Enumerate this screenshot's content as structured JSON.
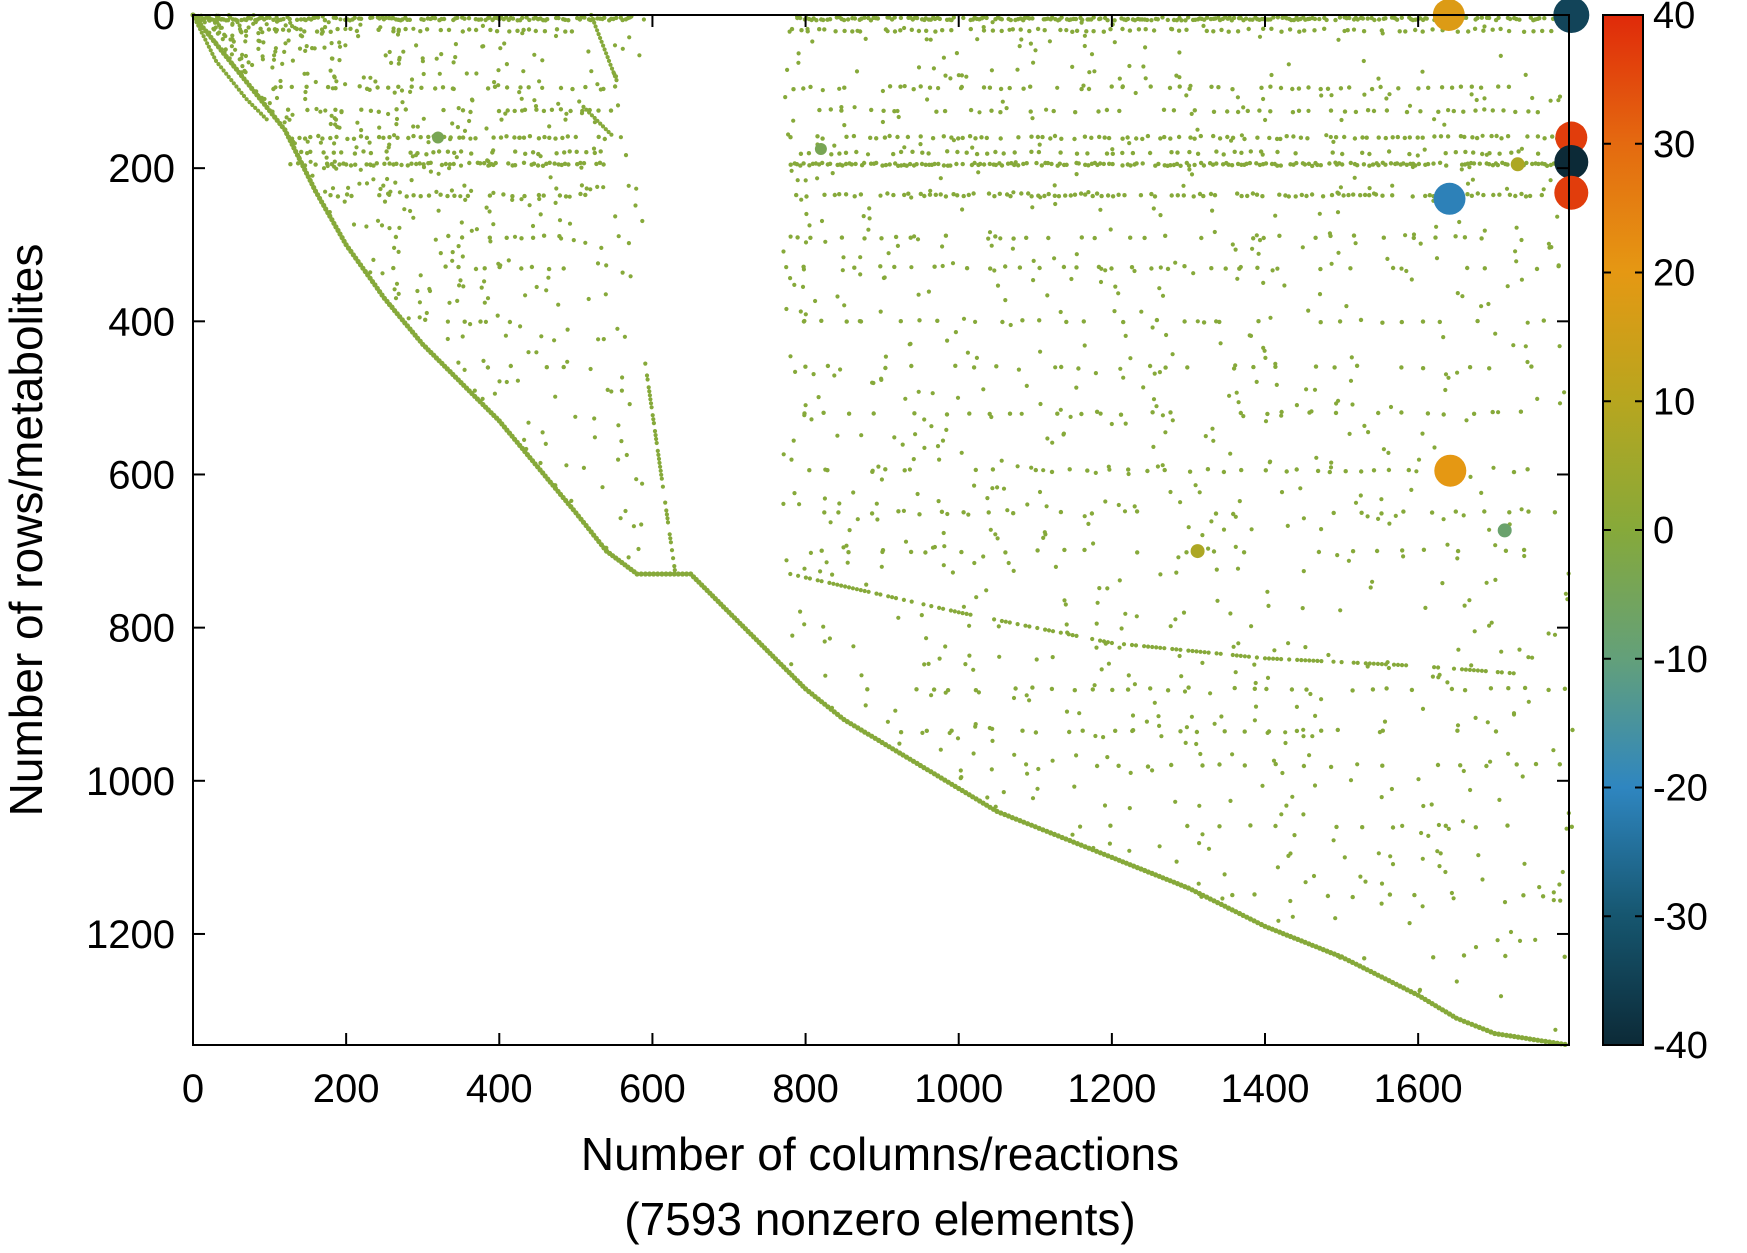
{
  "chart_data": {
    "type": "scatter",
    "title": "",
    "xlabel": "Number of columns/reactions",
    "xlabel_note": "(7593 nonzero elements)",
    "ylabel": "Number of rows/metabolites",
    "xlim": [
      0,
      1797
    ],
    "ylim": [
      1345,
      0
    ],
    "x_ticks": [
      0,
      200,
      400,
      600,
      800,
      1000,
      1200,
      1400,
      1600
    ],
    "y_ticks": [
      0,
      200,
      400,
      600,
      800,
      1000,
      1200
    ],
    "grid": false,
    "legend": "none",
    "colorbar": {
      "min": -40,
      "max": 40,
      "ticks": [
        40,
        30,
        20,
        10,
        0,
        -10,
        -20,
        -30,
        -40
      ],
      "stops": [
        {
          "v": -40,
          "color": "#0c2a37"
        },
        {
          "v": -30,
          "color": "#16566f"
        },
        {
          "v": -20,
          "color": "#2f86c0"
        },
        {
          "v": -10,
          "color": "#63a07a"
        },
        {
          "v": 0,
          "color": "#86a93a"
        },
        {
          "v": 10,
          "color": "#b7a61f"
        },
        {
          "v": 20,
          "color": "#e59813"
        },
        {
          "v": 30,
          "color": "#e46a10"
        },
        {
          "v": 40,
          "color": "#e02a0a"
        }
      ]
    },
    "diagonal_segments": [
      [
        [
          0,
          0
        ],
        [
          40,
          50
        ],
        [
          80,
          100
        ],
        [
          120,
          150
        ],
        [
          160,
          230
        ],
        [
          200,
          300
        ],
        [
          250,
          370
        ],
        [
          300,
          430
        ],
        [
          350,
          480
        ],
        [
          400,
          530
        ],
        [
          450,
          590
        ],
        [
          500,
          650
        ],
        [
          540,
          700
        ],
        [
          580,
          730
        ],
        [
          650,
          730
        ],
        [
          700,
          780
        ],
        [
          750,
          830
        ],
        [
          800,
          880
        ],
        [
          850,
          920
        ],
        [
          900,
          950
        ],
        [
          950,
          980
        ],
        [
          1000,
          1010
        ],
        [
          1050,
          1040
        ],
        [
          1100,
          1060
        ],
        [
          1150,
          1080
        ],
        [
          1200,
          1100
        ],
        [
          1300,
          1140
        ],
        [
          1400,
          1190
        ],
        [
          1500,
          1230
        ],
        [
          1600,
          1280
        ],
        [
          1650,
          1310
        ],
        [
          1700,
          1330
        ],
        [
          1797,
          1345
        ]
      ],
      [
        [
          0,
          0
        ],
        [
          30,
          60
        ],
        [
          70,
          110
        ],
        [
          100,
          140
        ]
      ],
      [
        [
          520,
          0
        ],
        [
          555,
          90
        ]
      ],
      [
        [
          510,
          120
        ],
        [
          550,
          160
        ]
      ],
      [
        [
          590,
          450
        ],
        [
          630,
          730
        ]
      ],
      [
        [
          780,
          730
        ],
        [
          1000,
          780
        ],
        [
          1200,
          820
        ],
        [
          1400,
          840
        ],
        [
          1600,
          850
        ],
        [
          1730,
          860
        ]
      ]
    ],
    "row_bands": [
      {
        "y": 5,
        "x": [
          0,
          570
        ],
        "step": 3
      },
      {
        "y": 5,
        "x": [
          780,
          1797
        ],
        "step": 3
      },
      {
        "y": 20,
        "x": [
          60,
          500
        ],
        "step": 9
      },
      {
        "y": 20,
        "x": [
          780,
          1790
        ],
        "step": 11
      },
      {
        "y": 95,
        "x": [
          100,
          560
        ],
        "step": 14
      },
      {
        "y": 95,
        "x": [
          780,
          1760
        ],
        "step": 13
      },
      {
        "y": 125,
        "x": [
          120,
          540
        ],
        "step": 12
      },
      {
        "y": 125,
        "x": [
          800,
          1760
        ],
        "step": 14
      },
      {
        "y": 160,
        "x": [
          120,
          540
        ],
        "step": 8
      },
      {
        "y": 160,
        "x": [
          780,
          1797
        ],
        "step": 8
      },
      {
        "y": 180,
        "x": [
          140,
          540
        ],
        "step": 10
      },
      {
        "y": 180,
        "x": [
          780,
          1760
        ],
        "step": 12
      },
      {
        "y": 195,
        "x": [
          120,
          540
        ],
        "step": 5
      },
      {
        "y": 195,
        "x": [
          780,
          1797
        ],
        "step": 4
      },
      {
        "y": 235,
        "x": [
          170,
          520
        ],
        "step": 9
      },
      {
        "y": 235,
        "x": [
          780,
          1760
        ],
        "step": 7
      },
      {
        "y": 290,
        "x": [
          260,
          480
        ],
        "step": 18
      },
      {
        "y": 290,
        "x": [
          780,
          1700
        ],
        "step": 22
      },
      {
        "y": 330,
        "x": [
          260,
          480
        ],
        "step": 20
      },
      {
        "y": 330,
        "x": [
          790,
          1790
        ],
        "step": 24
      },
      {
        "y": 400,
        "x": [
          300,
          480
        ],
        "step": 22
      },
      {
        "y": 400,
        "x": [
          790,
          1790
        ],
        "step": 26
      },
      {
        "y": 460,
        "x": [
          380,
          500
        ],
        "step": 24
      },
      {
        "y": 460,
        "x": [
          790,
          1780
        ],
        "step": 28
      },
      {
        "y": 520,
        "x": [
          790,
          1780
        ],
        "step": 30
      },
      {
        "y": 595,
        "x": [
          800,
          1790
        ],
        "step": 20
      },
      {
        "y": 650,
        "x": [
          810,
          1780
        ],
        "step": 32
      },
      {
        "y": 700,
        "x": [
          820,
          1760
        ],
        "step": 34
      },
      {
        "y": 880,
        "x": [
          880,
          1790
        ],
        "step": 26
      },
      {
        "y": 935,
        "x": [
          920,
          1790
        ],
        "step": 30
      },
      {
        "y": 980,
        "x": [
          1100,
          1790
        ],
        "step": 34
      },
      {
        "y": 1060,
        "x": [
          1180,
          1790
        ],
        "step": 38
      },
      {
        "y": 1150,
        "x": [
          1300,
          1790
        ],
        "step": 42
      },
      {
        "y": 1230,
        "x": [
          1480,
          1790
        ],
        "step": 44
      }
    ],
    "special_points": [
      {
        "x": 1640,
        "y": 0,
        "value": 18,
        "r": 16
      },
      {
        "x": 1800,
        "y": 0,
        "value": -34,
        "r": 18
      },
      {
        "x": 1800,
        "y": 160,
        "value": 37,
        "r": 16
      },
      {
        "x": 1800,
        "y": 192,
        "value": -40,
        "r": 17
      },
      {
        "x": 1800,
        "y": 232,
        "value": 37,
        "r": 17
      },
      {
        "x": 1641,
        "y": 240,
        "value": -21,
        "r": 16
      },
      {
        "x": 1642,
        "y": 595,
        "value": 20,
        "r": 16
      },
      {
        "x": 1713,
        "y": 673,
        "value": -8,
        "r": 7
      },
      {
        "x": 1312,
        "y": 700,
        "value": 8,
        "r": 7
      },
      {
        "x": 320,
        "y": 160,
        "value": -4,
        "r": 6
      },
      {
        "x": 820,
        "y": 175,
        "value": -4,
        "r": 6
      },
      {
        "x": 1730,
        "y": 195,
        "value": 8,
        "r": 7
      }
    ]
  }
}
